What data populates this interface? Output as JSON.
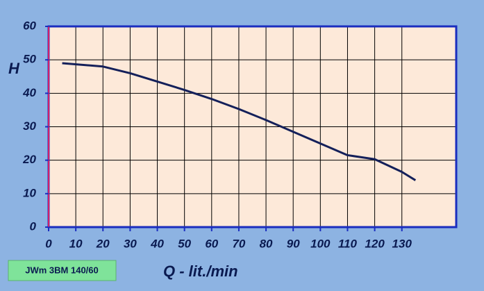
{
  "chart_data": {
    "type": "line",
    "label": "JWm 3BM 140/60",
    "xlabel": "Q - lit./min",
    "ylabel": "H",
    "x": [
      5,
      20,
      30,
      40,
      50,
      60,
      70,
      80,
      90,
      100,
      110,
      120,
      130,
      135
    ],
    "values": [
      49,
      48,
      46,
      43.5,
      41,
      38.3,
      35.3,
      32,
      28.5,
      25,
      21.5,
      20.3,
      16.5,
      14
    ],
    "color": "#14205a",
    "xlim": [
      0,
      150
    ],
    "xticks": [
      0,
      10,
      20,
      30,
      40,
      50,
      60,
      70,
      80,
      90,
      100,
      110,
      120,
      130
    ],
    "ylim": [
      0,
      60
    ],
    "yticks": [
      0,
      10,
      20,
      30,
      40,
      50,
      60
    ],
    "grid": true
  }
}
